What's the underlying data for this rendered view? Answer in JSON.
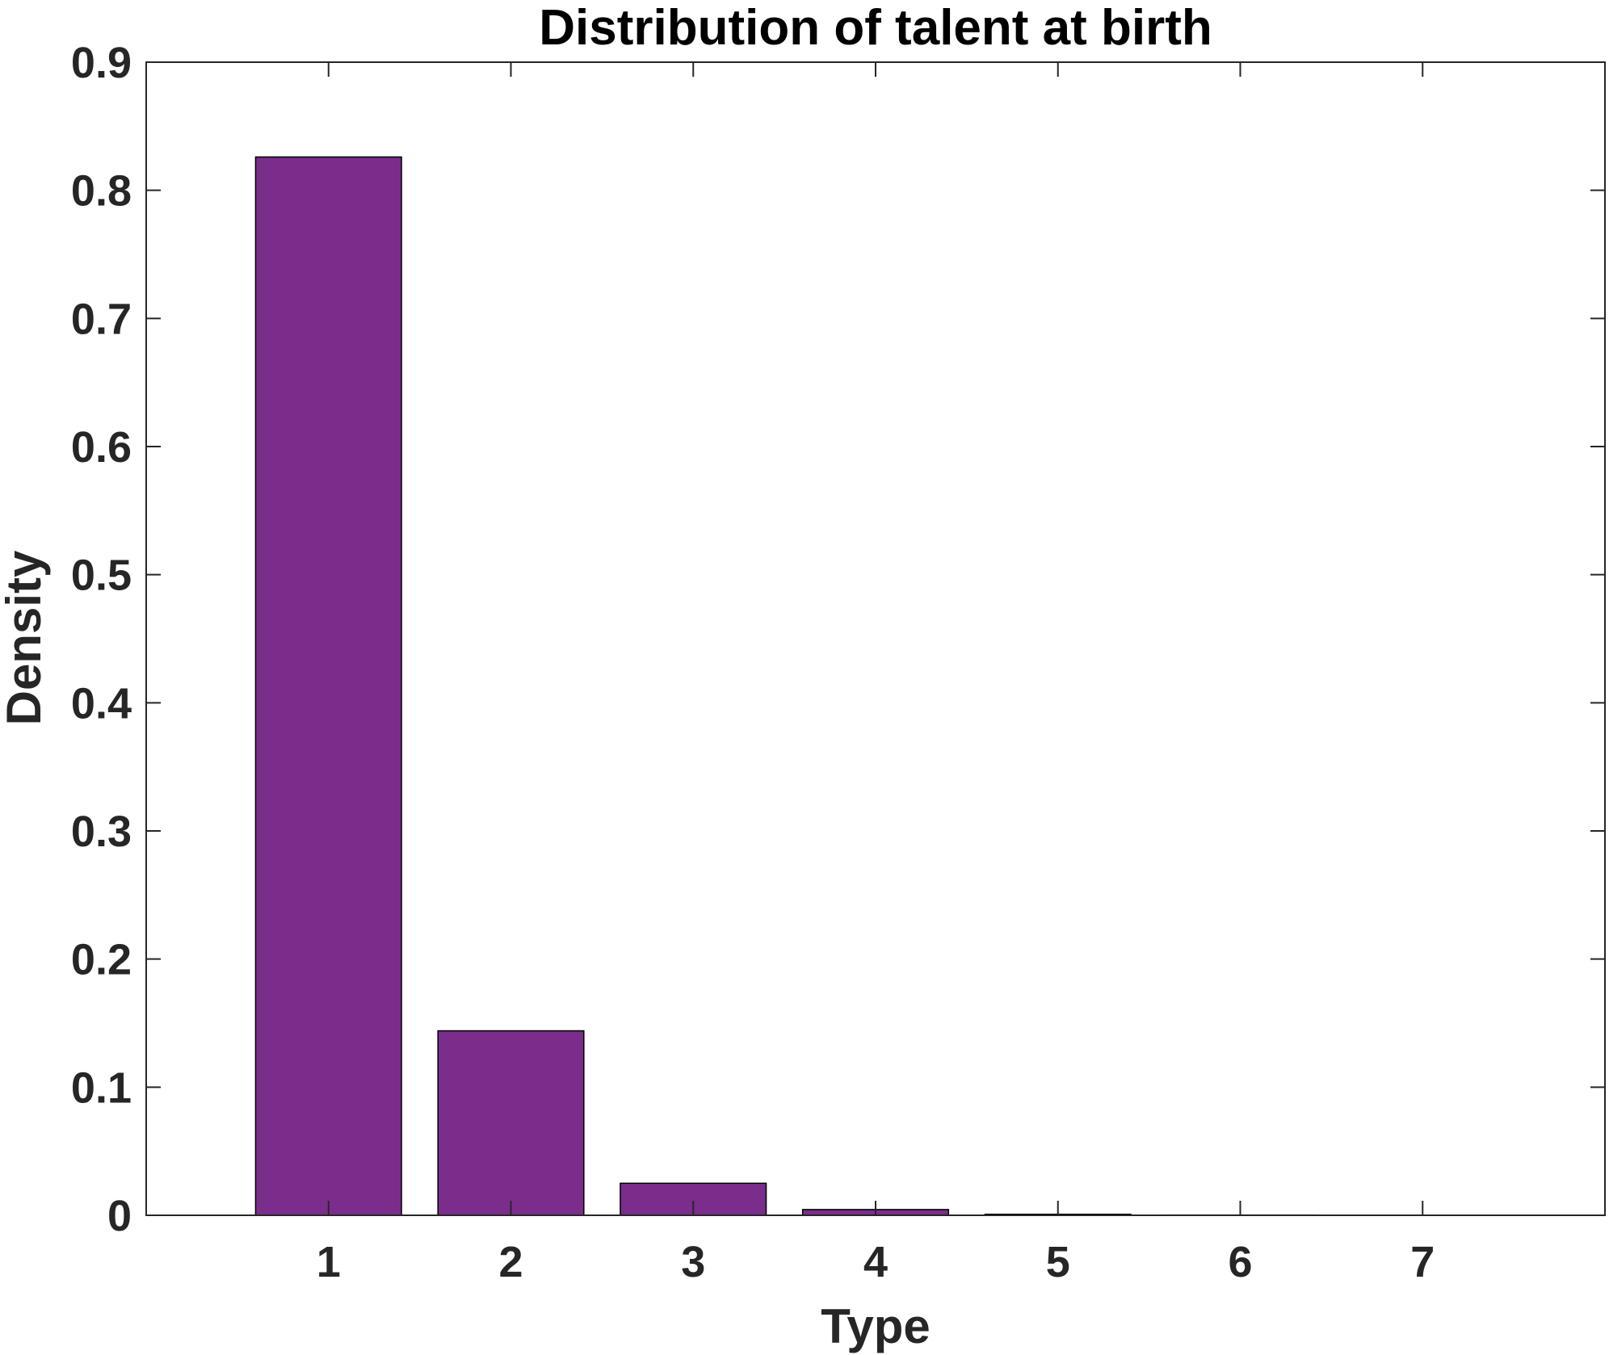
{
  "chart_data": {
    "type": "bar",
    "title": "Distribution of talent at birth",
    "xlabel": "Type",
    "ylabel": "Density",
    "categories": [
      "1",
      "2",
      "3",
      "4",
      "5",
      "6",
      "7"
    ],
    "x": [
      1,
      2,
      3,
      4,
      5,
      6,
      7
    ],
    "values": [
      0.826,
      0.144,
      0.025,
      0.0045,
      0.0008,
      0.0002,
      5e-05
    ],
    "xlim": [
      0,
      8
    ],
    "ylim": [
      0,
      0.9
    ],
    "yticks": [
      0,
      0.1,
      0.2,
      0.3,
      0.4,
      0.5,
      0.6,
      0.7,
      0.8,
      0.9
    ],
    "ytick_labels": [
      "0",
      "0.1",
      "0.2",
      "0.3",
      "0.4",
      "0.5",
      "0.6",
      "0.7",
      "0.8",
      "0.9"
    ],
    "grid": false,
    "legend": "none",
    "bar_width": 0.8,
    "colors": {
      "bar_fill": "#7B2D8B",
      "bar_edge": "#000000",
      "axis": "#262626"
    }
  }
}
